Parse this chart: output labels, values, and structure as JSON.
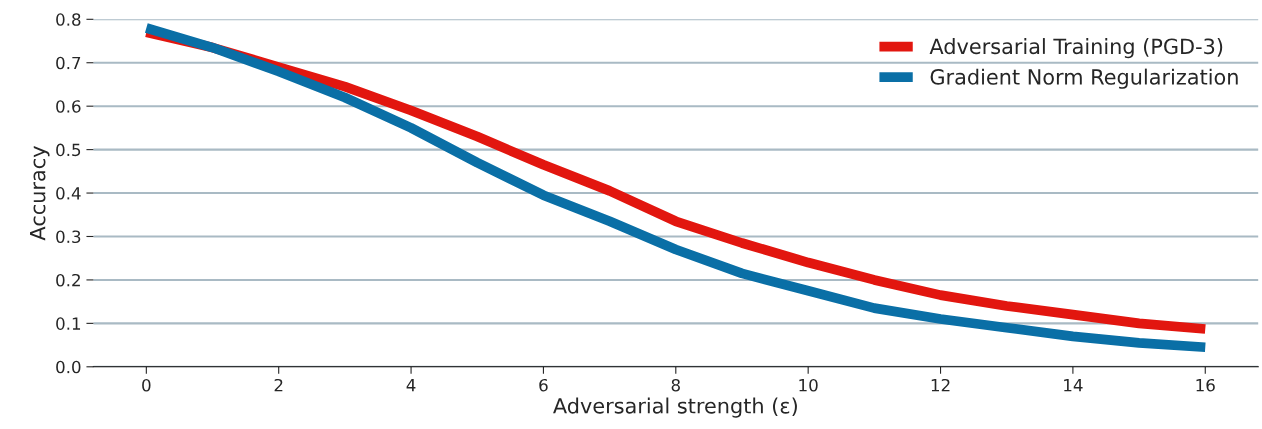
{
  "chart_data": {
    "type": "line",
    "xlabel": "Adversarial strength (ε)",
    "ylabel": "Accuracy",
    "x": [
      0,
      1,
      2,
      3,
      4,
      5,
      6,
      7,
      8,
      9,
      10,
      11,
      12,
      13,
      14,
      15,
      16
    ],
    "series": [
      {
        "name": "Adversarial Training (PGD-3)",
        "color": "#e2160f",
        "values": [
          0.77,
          0.735,
          0.69,
          0.645,
          0.59,
          0.53,
          0.465,
          0.405,
          0.335,
          0.285,
          0.24,
          0.2,
          0.165,
          0.14,
          0.12,
          0.1,
          0.087
        ]
      },
      {
        "name": "Gradient Norm Regularization",
        "color": "#0a6fa6",
        "values": [
          0.78,
          0.735,
          0.68,
          0.62,
          0.55,
          0.47,
          0.395,
          0.335,
          0.27,
          0.215,
          0.175,
          0.135,
          0.11,
          0.09,
          0.07,
          0.055,
          0.045
        ]
      }
    ],
    "xlim": [
      -0.8,
      16.8
    ],
    "xticks": [
      0,
      2,
      4,
      6,
      8,
      10,
      12,
      14,
      16
    ],
    "ylim": [
      0,
      0.8
    ],
    "yticks": [
      {
        "value": 0,
        "label": "0.0"
      },
      0.1,
      0.2,
      0.3,
      0.4,
      0.5,
      0.6,
      0.7,
      0.8
    ],
    "grid": "y",
    "legend": "top right",
    "marker": "none",
    "line_style": "solid"
  }
}
